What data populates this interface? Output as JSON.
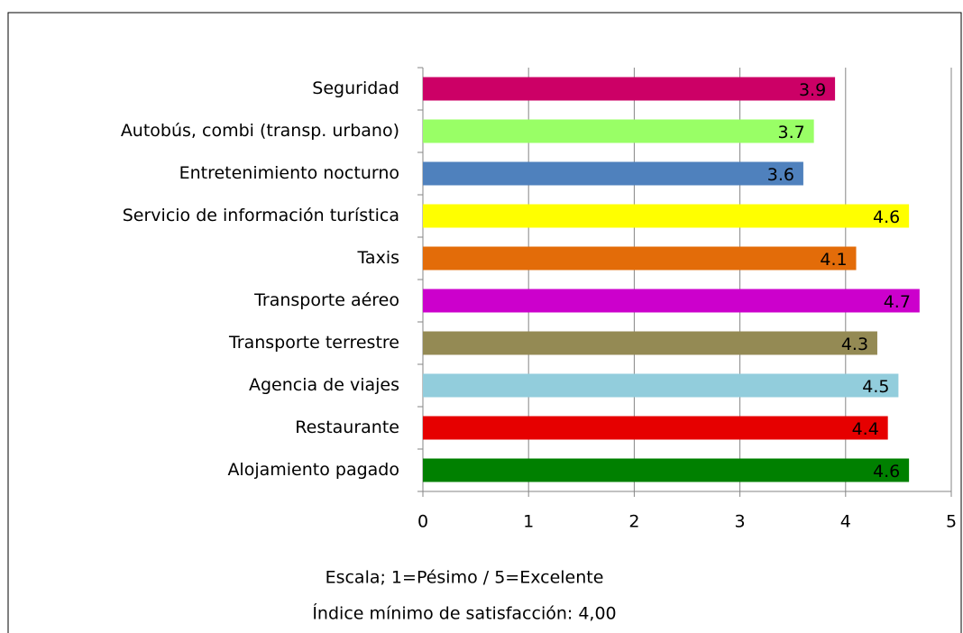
{
  "chart_data": {
    "type": "bar",
    "orientation": "horizontal",
    "categories": [
      "Seguridad",
      "Autobús, combi (transp. urbano)",
      "Entretenimiento nocturno",
      "Servicio de información turística",
      "Taxis",
      "Transporte aéreo",
      "Transporte terrestre",
      "Agencia de viajes",
      "Restaurante",
      "Alojamiento pagado"
    ],
    "values": [
      3.9,
      3.7,
      3.6,
      4.6,
      4.1,
      4.7,
      4.3,
      4.5,
      4.4,
      4.6
    ],
    "colors": [
      "#cc0066",
      "#99ff66",
      "#4f81bd",
      "#ffff00",
      "#e36c09",
      "#cc00cc",
      "#948a54",
      "#92cddc",
      "#e60000",
      "#008000"
    ],
    "xlim": [
      0,
      5
    ],
    "xticks": [
      0,
      1,
      2,
      3,
      4,
      5
    ],
    "grid": true,
    "annotations": [
      "Escala; 1=Pésimo / 5=Excelente",
      "Índice mínimo de satisfacción: 4,00"
    ]
  }
}
